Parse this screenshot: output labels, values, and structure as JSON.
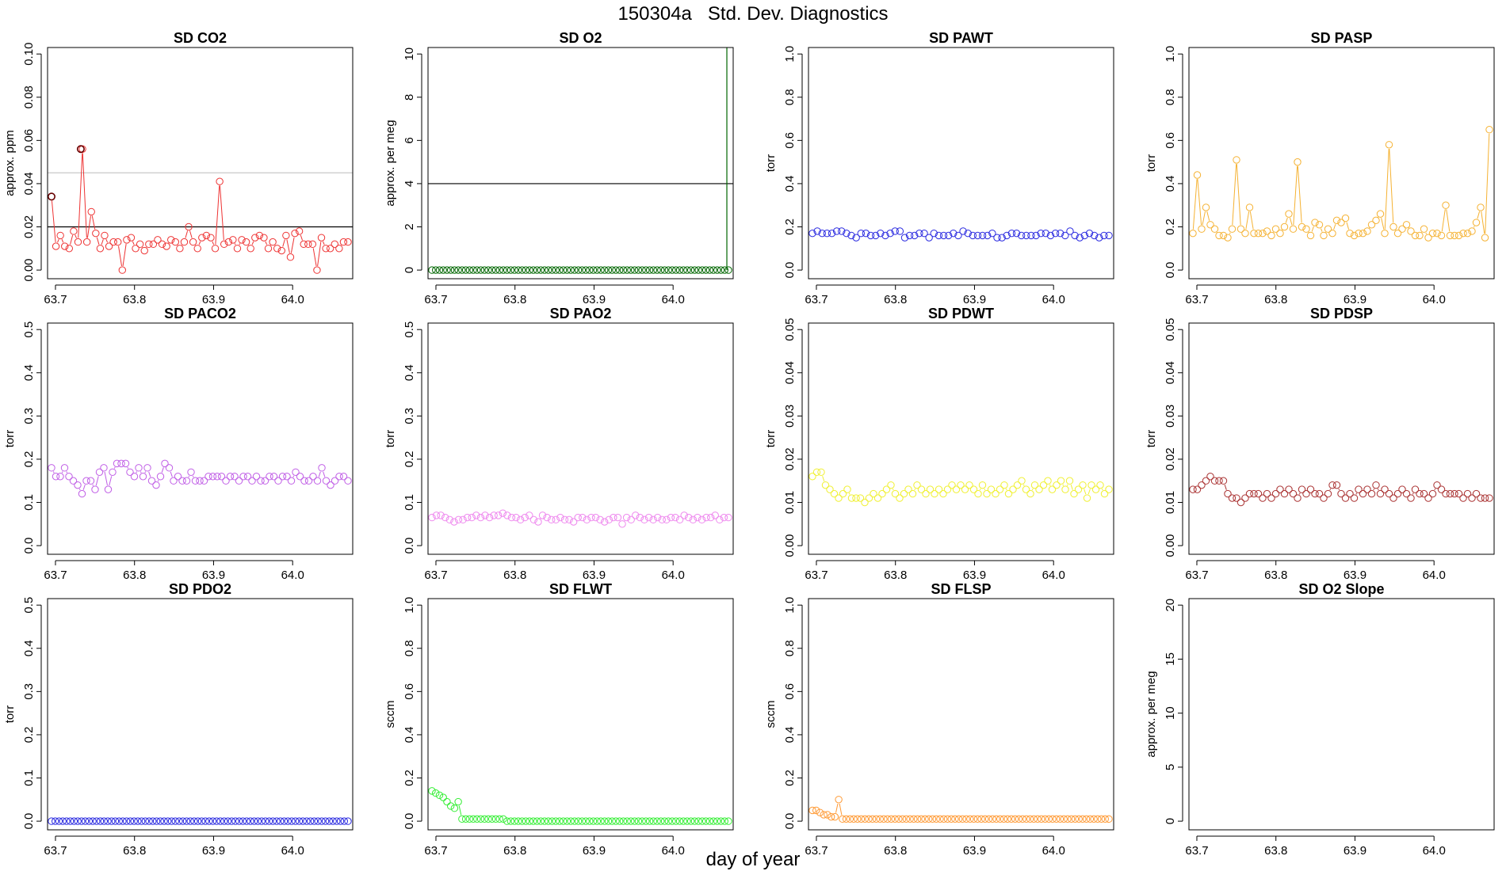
{
  "title": "150304a   Std. Dev. Diagnostics",
  "xlabel": "day of year",
  "chart_data": [
    {
      "type": "line",
      "title": "SD CO2",
      "ylabel": "approx. ppm",
      "color": "#ee3333",
      "xlim": [
        63.69,
        64.076
      ],
      "xticks": [
        63.7,
        63.8,
        63.9,
        64.0
      ],
      "xtick_labels": [
        "63.7",
        "63.8",
        "63.9",
        "64.0"
      ],
      "ylim": [
        -0.004,
        0.103
      ],
      "yticks": [
        0,
        0.02,
        0.04,
        0.06,
        0.08,
        0.1
      ],
      "ytick_labels": [
        "0.00",
        "0.02",
        "0.04",
        "0.06",
        "0.08",
        "0.10"
      ],
      "hlines": [
        {
          "y": 0.02,
          "color": "#000000"
        },
        {
          "y": 0.045,
          "color": "#c8c8c8"
        }
      ],
      "special_points": [
        {
          "x": 63.695,
          "y": 0.034,
          "color": "#660000"
        },
        {
          "x": 63.732,
          "y": 0.056,
          "color": "#660000"
        }
      ],
      "y": [
        0.034,
        0.011,
        0.016,
        0.011,
        0.01,
        0.018,
        0.013,
        0.056,
        0.013,
        0.027,
        0.017,
        0.01,
        0.016,
        0.011,
        0.013,
        0.013,
        0.0,
        0.014,
        0.015,
        0.01,
        0.012,
        0.009,
        0.012,
        0.012,
        0.014,
        0.012,
        0.011,
        0.014,
        0.013,
        0.01,
        0.013,
        0.02,
        0.013,
        0.01,
        0.015,
        0.016,
        0.015,
        0.01,
        0.041,
        0.012,
        0.013,
        0.014,
        0.01,
        0.014,
        0.013,
        0.01,
        0.015,
        0.016,
        0.015,
        0.01,
        0.013,
        0.01,
        0.009,
        0.016,
        0.006,
        0.017,
        0.018,
        0.012,
        0.012,
        0.012,
        0.0,
        0.015,
        0.01,
        0.01,
        0.012,
        0.01,
        0.013,
        0.013
      ]
    },
    {
      "type": "line",
      "title": "SD O2",
      "ylabel": "approx. per meg",
      "color": "#006600",
      "xlim": [
        63.69,
        64.076
      ],
      "xticks": [
        63.7,
        63.8,
        63.9,
        64.0
      ],
      "xtick_labels": [
        "63.7",
        "63.8",
        "63.9",
        "64.0"
      ],
      "ylim": [
        -0.4,
        10.3
      ],
      "yticks": [
        0,
        2,
        4,
        6,
        8,
        10
      ],
      "ytick_labels": [
        "0",
        "2",
        "4",
        "6",
        "8",
        "10"
      ],
      "hlines": [
        {
          "y": 4,
          "color": "#000000"
        }
      ],
      "vlines": [
        {
          "x": 64.068,
          "color": "#006600"
        }
      ],
      "y": [
        0,
        0,
        0,
        0,
        0,
        0,
        0,
        0,
        0,
        0,
        0,
        0,
        0,
        0,
        0,
        0,
        0,
        0,
        0,
        0,
        0,
        0,
        0,
        0,
        0,
        0,
        0,
        0,
        0,
        0,
        0,
        0,
        0,
        0,
        0,
        0,
        0,
        0,
        0,
        0,
        0,
        0,
        0,
        0,
        0,
        0,
        0,
        0,
        0,
        0,
        0,
        0,
        0,
        0,
        0,
        0,
        0,
        0,
        0,
        0,
        0,
        0,
        0,
        0,
        0,
        0,
        0,
        0,
        0,
        0,
        0,
        0,
        0,
        0,
        0,
        0,
        0,
        0,
        0,
        0
      ]
    },
    {
      "type": "line",
      "title": "SD PAWT",
      "ylabel": "torr",
      "color": "#2a2ae0",
      "xlim": [
        63.69,
        64.076
      ],
      "xticks": [
        63.7,
        63.8,
        63.9,
        64.0
      ],
      "xtick_labels": [
        "63.7",
        "63.8",
        "63.9",
        "64.0"
      ],
      "ylim": [
        -0.04,
        1.03
      ],
      "yticks": [
        0,
        0.2,
        0.4,
        0.6,
        0.8,
        1.0
      ],
      "ytick_labels": [
        "0.0",
        "0.2",
        "0.4",
        "0.6",
        "0.8",
        "1.0"
      ],
      "y": [
        0.17,
        0.18,
        0.17,
        0.17,
        0.17,
        0.18,
        0.18,
        0.17,
        0.16,
        0.15,
        0.17,
        0.17,
        0.16,
        0.16,
        0.17,
        0.16,
        0.17,
        0.18,
        0.18,
        0.15,
        0.16,
        0.16,
        0.17,
        0.17,
        0.15,
        0.17,
        0.16,
        0.16,
        0.16,
        0.17,
        0.16,
        0.18,
        0.17,
        0.16,
        0.16,
        0.16,
        0.16,
        0.17,
        0.15,
        0.15,
        0.16,
        0.17,
        0.17,
        0.16,
        0.16,
        0.16,
        0.16,
        0.17,
        0.17,
        0.16,
        0.17,
        0.17,
        0.16,
        0.18,
        0.16,
        0.15,
        0.16,
        0.17,
        0.16,
        0.15,
        0.16,
        0.16
      ]
    },
    {
      "type": "line",
      "title": "SD PASP",
      "ylabel": "torr",
      "color": "#f5b233",
      "xlim": [
        63.69,
        64.076
      ],
      "xticks": [
        63.7,
        63.8,
        63.9,
        64.0
      ],
      "xtick_labels": [
        "63.7",
        "63.8",
        "63.9",
        "64.0"
      ],
      "ylim": [
        -0.04,
        1.03
      ],
      "yticks": [
        0,
        0.2,
        0.4,
        0.6,
        0.8,
        1.0
      ],
      "ytick_labels": [
        "0.0",
        "0.2",
        "0.4",
        "0.6",
        "0.8",
        "1.0"
      ],
      "y": [
        0.17,
        0.44,
        0.19,
        0.29,
        0.21,
        0.19,
        0.16,
        0.16,
        0.15,
        0.19,
        0.51,
        0.19,
        0.17,
        0.29,
        0.17,
        0.17,
        0.17,
        0.18,
        0.16,
        0.19,
        0.17,
        0.2,
        0.26,
        0.19,
        0.5,
        0.2,
        0.19,
        0.16,
        0.22,
        0.21,
        0.16,
        0.19,
        0.17,
        0.23,
        0.22,
        0.24,
        0.17,
        0.16,
        0.17,
        0.17,
        0.18,
        0.21,
        0.23,
        0.26,
        0.17,
        0.58,
        0.2,
        0.17,
        0.19,
        0.21,
        0.18,
        0.16,
        0.16,
        0.19,
        0.15,
        0.17,
        0.17,
        0.16,
        0.3,
        0.16,
        0.16,
        0.16,
        0.17,
        0.17,
        0.18,
        0.22,
        0.29,
        0.15,
        0.65
      ]
    },
    {
      "type": "line",
      "title": "SD PACO2",
      "ylabel": "torr",
      "color": "#c05ee6",
      "xlim": [
        63.69,
        64.076
      ],
      "xticks": [
        63.7,
        63.8,
        63.9,
        64.0
      ],
      "xtick_labels": [
        "63.7",
        "63.8",
        "63.9",
        "64.0"
      ],
      "ylim": [
        -0.02,
        0.515
      ],
      "yticks": [
        0,
        0.1,
        0.2,
        0.3,
        0.4,
        0.5
      ],
      "ytick_labels": [
        "0.0",
        "0.1",
        "0.2",
        "0.3",
        "0.4",
        "0.5"
      ],
      "y": [
        0.18,
        0.16,
        0.16,
        0.18,
        0.16,
        0.15,
        0.14,
        0.12,
        0.15,
        0.15,
        0.13,
        0.17,
        0.18,
        0.13,
        0.17,
        0.19,
        0.19,
        0.19,
        0.17,
        0.16,
        0.18,
        0.16,
        0.18,
        0.15,
        0.14,
        0.16,
        0.19,
        0.18,
        0.15,
        0.16,
        0.15,
        0.15,
        0.17,
        0.15,
        0.15,
        0.15,
        0.16,
        0.16,
        0.16,
        0.16,
        0.15,
        0.16,
        0.16,
        0.15,
        0.16,
        0.16,
        0.15,
        0.16,
        0.15,
        0.15,
        0.16,
        0.16,
        0.15,
        0.16,
        0.16,
        0.15,
        0.17,
        0.16,
        0.15,
        0.15,
        0.16,
        0.15,
        0.18,
        0.15,
        0.14,
        0.15,
        0.16,
        0.16,
        0.15
      ]
    },
    {
      "type": "line",
      "title": "SD PAO2",
      "ylabel": "torr",
      "color": "#ee88ee",
      "xlim": [
        63.69,
        64.076
      ],
      "xticks": [
        63.7,
        63.8,
        63.9,
        64.0
      ],
      "xtick_labels": [
        "63.7",
        "63.8",
        "63.9",
        "64.0"
      ],
      "ylim": [
        -0.02,
        0.515
      ],
      "yticks": [
        0,
        0.1,
        0.2,
        0.3,
        0.4,
        0.5
      ],
      "ytick_labels": [
        "0.0",
        "0.1",
        "0.2",
        "0.3",
        "0.4",
        "0.5"
      ],
      "y": [
        0.065,
        0.07,
        0.07,
        0.065,
        0.06,
        0.055,
        0.06,
        0.06,
        0.065,
        0.065,
        0.07,
        0.065,
        0.07,
        0.065,
        0.07,
        0.07,
        0.075,
        0.07,
        0.065,
        0.065,
        0.06,
        0.065,
        0.07,
        0.06,
        0.055,
        0.07,
        0.065,
        0.06,
        0.06,
        0.065,
        0.06,
        0.06,
        0.055,
        0.065,
        0.065,
        0.06,
        0.065,
        0.065,
        0.06,
        0.055,
        0.06,
        0.065,
        0.065,
        0.05,
        0.065,
        0.06,
        0.07,
        0.065,
        0.06,
        0.065,
        0.06,
        0.065,
        0.06,
        0.06,
        0.065,
        0.065,
        0.06,
        0.07,
        0.065,
        0.06,
        0.065,
        0.06,
        0.065,
        0.065,
        0.07,
        0.06,
        0.065,
        0.065
      ]
    },
    {
      "type": "line",
      "title": "SD PDWT",
      "ylabel": "torr",
      "color": "#f0f033",
      "xlim": [
        63.69,
        64.076
      ],
      "xticks": [
        63.7,
        63.8,
        63.9,
        64.0
      ],
      "xtick_labels": [
        "63.7",
        "63.8",
        "63.9",
        "64.0"
      ],
      "ylim": [
        -0.002,
        0.0515
      ],
      "yticks": [
        0,
        0.01,
        0.02,
        0.03,
        0.04,
        0.05
      ],
      "ytick_labels": [
        "0.00",
        "0.01",
        "0.02",
        "0.03",
        "0.04",
        "0.05"
      ],
      "y": [
        0.016,
        0.017,
        0.017,
        0.014,
        0.013,
        0.012,
        0.011,
        0.012,
        0.013,
        0.011,
        0.011,
        0.011,
        0.01,
        0.011,
        0.012,
        0.011,
        0.012,
        0.013,
        0.014,
        0.012,
        0.011,
        0.012,
        0.013,
        0.012,
        0.014,
        0.013,
        0.012,
        0.013,
        0.012,
        0.013,
        0.012,
        0.013,
        0.014,
        0.013,
        0.014,
        0.013,
        0.014,
        0.013,
        0.012,
        0.014,
        0.012,
        0.013,
        0.012,
        0.013,
        0.014,
        0.012,
        0.013,
        0.014,
        0.015,
        0.013,
        0.012,
        0.014,
        0.013,
        0.014,
        0.015,
        0.013,
        0.014,
        0.015,
        0.013,
        0.015,
        0.012,
        0.013,
        0.014,
        0.011,
        0.014,
        0.013,
        0.014,
        0.012,
        0.013
      ]
    },
    {
      "type": "line",
      "title": "SD PDSP",
      "ylabel": "torr",
      "color": "#aa3333",
      "xlim": [
        63.69,
        64.076
      ],
      "xticks": [
        63.7,
        63.8,
        63.9,
        64.0
      ],
      "xtick_labels": [
        "63.7",
        "63.8",
        "63.9",
        "64.0"
      ],
      "ylim": [
        -0.002,
        0.0515
      ],
      "yticks": [
        0,
        0.01,
        0.02,
        0.03,
        0.04,
        0.05
      ],
      "ytick_labels": [
        "0.00",
        "0.01",
        "0.02",
        "0.03",
        "0.04",
        "0.05"
      ],
      "y": [
        0.013,
        0.013,
        0.014,
        0.015,
        0.016,
        0.015,
        0.015,
        0.015,
        0.012,
        0.011,
        0.011,
        0.01,
        0.011,
        0.012,
        0.012,
        0.012,
        0.011,
        0.012,
        0.011,
        0.012,
        0.013,
        0.012,
        0.013,
        0.012,
        0.011,
        0.013,
        0.012,
        0.013,
        0.012,
        0.012,
        0.011,
        0.012,
        0.014,
        0.014,
        0.012,
        0.011,
        0.012,
        0.011,
        0.013,
        0.012,
        0.013,
        0.012,
        0.014,
        0.012,
        0.013,
        0.012,
        0.011,
        0.012,
        0.013,
        0.012,
        0.011,
        0.013,
        0.012,
        0.012,
        0.011,
        0.012,
        0.014,
        0.013,
        0.012,
        0.012,
        0.012,
        0.012,
        0.011,
        0.012,
        0.011,
        0.012,
        0.011,
        0.011,
        0.011
      ]
    },
    {
      "type": "line",
      "title": "SD PDO2",
      "ylabel": "torr",
      "color": "#2a2ae0",
      "xlim": [
        63.69,
        64.076
      ],
      "xticks": [
        63.7,
        63.8,
        63.9,
        64.0
      ],
      "xtick_labels": [
        "63.7",
        "63.8",
        "63.9",
        "64.0"
      ],
      "ylim": [
        -0.02,
        0.515
      ],
      "yticks": [
        0,
        0.1,
        0.2,
        0.3,
        0.4,
        0.5
      ],
      "ytick_labels": [
        "0.0",
        "0.1",
        "0.2",
        "0.3",
        "0.4",
        "0.5"
      ],
      "y": [
        0,
        0,
        0,
        0,
        0,
        0,
        0,
        0,
        0,
        0,
        0,
        0,
        0,
        0,
        0,
        0,
        0,
        0,
        0,
        0,
        0,
        0,
        0,
        0,
        0,
        0,
        0,
        0,
        0,
        0,
        0,
        0,
        0,
        0,
        0,
        0,
        0,
        0,
        0,
        0,
        0,
        0,
        0,
        0,
        0,
        0,
        0,
        0,
        0,
        0,
        0,
        0,
        0,
        0,
        0,
        0,
        0,
        0,
        0,
        0,
        0,
        0,
        0,
        0,
        0,
        0,
        0,
        0,
        0,
        0,
        0,
        0,
        0,
        0,
        0,
        0,
        0,
        0,
        0,
        0
      ]
    },
    {
      "type": "line",
      "title": "SD FLWT",
      "ylabel": "sccm",
      "color": "#33ee33",
      "xlim": [
        63.69,
        64.076
      ],
      "xticks": [
        63.7,
        63.8,
        63.9,
        64.0
      ],
      "xtick_labels": [
        "63.7",
        "63.8",
        "63.9",
        "64.0"
      ],
      "ylim": [
        -0.04,
        1.03
      ],
      "yticks": [
        0,
        0.2,
        0.4,
        0.6,
        0.8,
        1.0
      ],
      "ytick_labels": [
        "0.0",
        "0.2",
        "0.4",
        "0.6",
        "0.8",
        "1.0"
      ],
      "y": [
        0.14,
        0.13,
        0.12,
        0.11,
        0.09,
        0.07,
        0.06,
        0.09,
        0.01,
        0.01,
        0.01,
        0.01,
        0.01,
        0.01,
        0.01,
        0.01,
        0.01,
        0.01,
        0.01,
        0.01,
        0,
        0,
        0,
        0,
        0,
        0,
        0,
        0,
        0,
        0,
        0,
        0,
        0,
        0,
        0,
        0,
        0,
        0,
        0,
        0,
        0,
        0,
        0,
        0,
        0,
        0,
        0,
        0,
        0,
        0,
        0,
        0,
        0,
        0,
        0,
        0,
        0,
        0,
        0,
        0,
        0,
        0,
        0,
        0,
        0,
        0,
        0,
        0,
        0,
        0,
        0,
        0,
        0,
        0,
        0,
        0,
        0,
        0,
        0,
        0
      ]
    },
    {
      "type": "line",
      "title": "SD FLSP",
      "ylabel": "sccm",
      "color": "#ff9933",
      "xlim": [
        63.69,
        64.076
      ],
      "xticks": [
        63.7,
        63.8,
        63.9,
        64.0
      ],
      "xtick_labels": [
        "63.7",
        "63.8",
        "63.9",
        "64.0"
      ],
      "ylim": [
        -0.04,
        1.03
      ],
      "yticks": [
        0,
        0.2,
        0.4,
        0.6,
        0.8,
        1.0
      ],
      "ytick_labels": [
        "0.0",
        "0.2",
        "0.4",
        "0.6",
        "0.8",
        "1.0"
      ],
      "y": [
        0.05,
        0.05,
        0.04,
        0.03,
        0.03,
        0.02,
        0.02,
        0.1,
        0.01,
        0.01,
        0.01,
        0.01,
        0.01,
        0.01,
        0.01,
        0.01,
        0.01,
        0.01,
        0.01,
        0.01,
        0.01,
        0.01,
        0.01,
        0.01,
        0.01,
        0.01,
        0.01,
        0.01,
        0.01,
        0.01,
        0.01,
        0.01,
        0.01,
        0.01,
        0.01,
        0.01,
        0.01,
        0.01,
        0.01,
        0.01,
        0.01,
        0.01,
        0.01,
        0.01,
        0.01,
        0.01,
        0.01,
        0.01,
        0.01,
        0.01,
        0.01,
        0.01,
        0.01,
        0.01,
        0.01,
        0.01,
        0.01,
        0.01,
        0.01,
        0.01,
        0.01,
        0.01,
        0.01,
        0.01,
        0.01,
        0.01,
        0.01,
        0.01,
        0.01,
        0.01,
        0.01,
        0.01,
        0.01,
        0.01,
        0.01,
        0.01,
        0.01,
        0.01,
        0.01,
        0.01
      ]
    },
    {
      "type": "line",
      "title": "SD O2 Slope",
      "ylabel": "approx. per meg",
      "color": "#000000",
      "xlim": [
        63.69,
        64.076
      ],
      "xticks": [
        63.7,
        63.8,
        63.9,
        64.0
      ],
      "xtick_labels": [
        "63.7",
        "63.8",
        "63.9",
        "64.0"
      ],
      "ylim": [
        -0.8,
        20.6
      ],
      "yticks": [
        0,
        5,
        10,
        15,
        20
      ],
      "ytick_labels": [
        "0",
        "5",
        "10",
        "15",
        "20"
      ],
      "y": []
    }
  ]
}
